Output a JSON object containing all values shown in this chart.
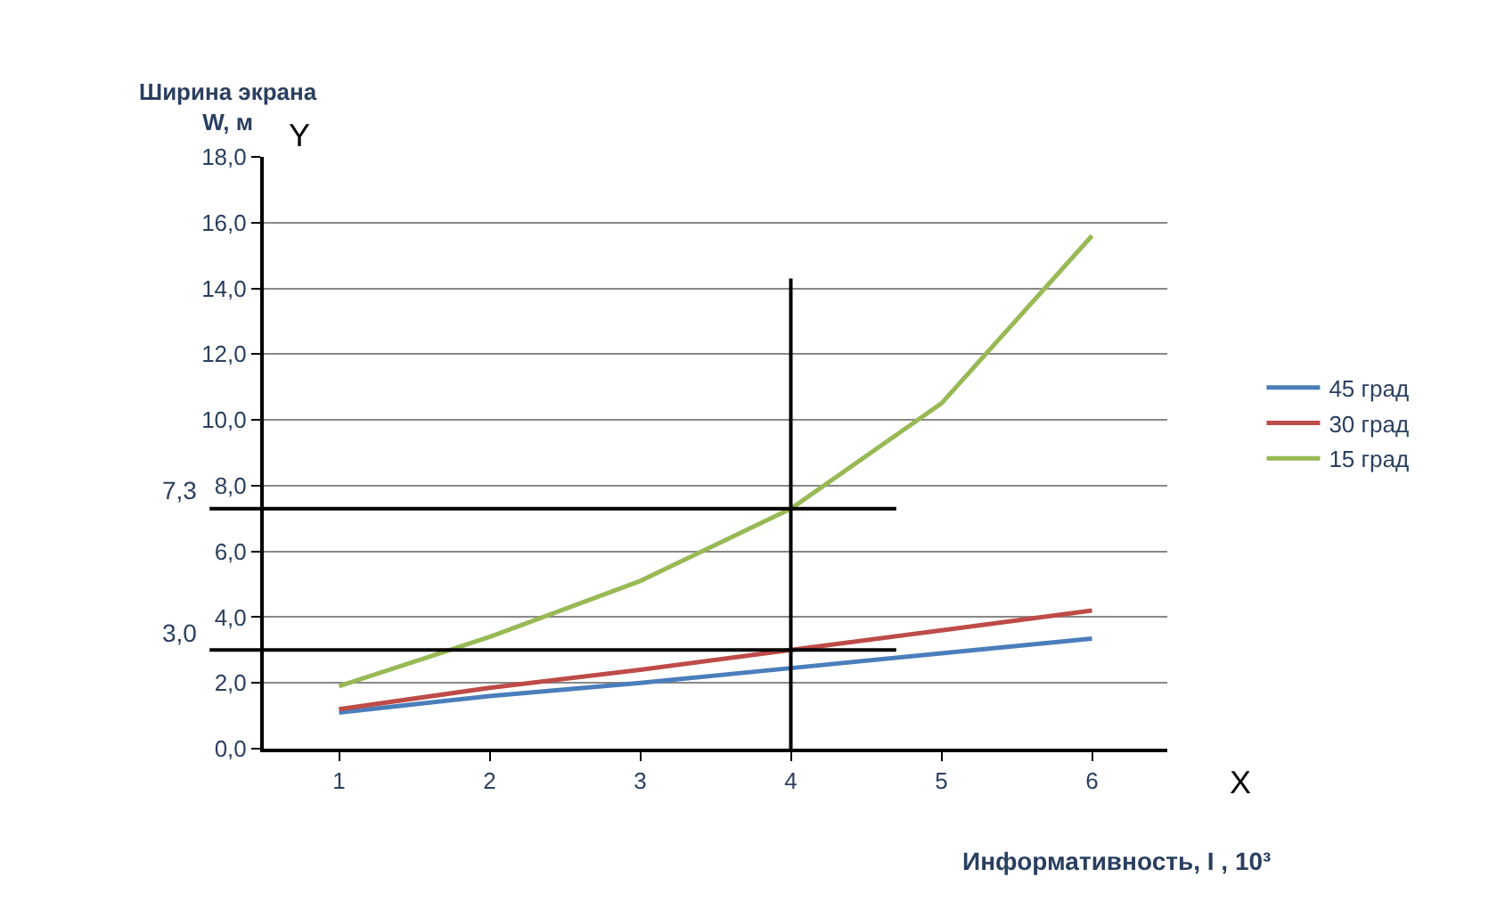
{
  "chart_data": {
    "type": "line",
    "xlabel": "Информативность, I , 10³",
    "ylabel": "Ширина экрана\nW, м",
    "x": [
      1,
      2,
      3,
      4,
      5,
      6
    ],
    "xlim": [
      0.5,
      6.5
    ],
    "xticks": [
      1,
      2,
      3,
      4,
      5,
      6
    ],
    "ylim": [
      0,
      18
    ],
    "yticks": [
      {
        "value": 0,
        "label": "0,0"
      },
      {
        "value": 2,
        "label": "2,0"
      },
      {
        "value": 4,
        "label": "4,0"
      },
      {
        "value": 6,
        "label": "6,0"
      },
      {
        "value": 8,
        "label": "8,0"
      },
      {
        "value": 10,
        "label": "10,0"
      },
      {
        "value": 12,
        "label": "12,0"
      },
      {
        "value": 14,
        "label": "14,0"
      },
      {
        "value": 16,
        "label": "16,0"
      },
      {
        "value": 18,
        "label": "18,0"
      }
    ],
    "series": [
      {
        "name": "45 град",
        "color": "#4a7ebb",
        "values": [
          1.1,
          1.6,
          2.0,
          2.45,
          2.9,
          3.35
        ]
      },
      {
        "name": "30 град",
        "color": "#be4b48",
        "values": [
          1.2,
          1.85,
          2.4,
          3.0,
          3.6,
          4.2
        ]
      },
      {
        "name": "15 град",
        "color": "#98b954",
        "values": [
          1.9,
          3.4,
          5.1,
          7.3,
          10.5,
          15.6
        ]
      }
    ],
    "ref_lines": [
      {
        "axis": "y",
        "value": 7.3,
        "label": "7,3",
        "color": "#000000"
      },
      {
        "axis": "y",
        "value": 3.0,
        "label": "3,0",
        "color": "#000000"
      },
      {
        "axis": "x",
        "value": 4,
        "label": null,
        "color": "#000000"
      }
    ],
    "annotations": [
      "Y",
      "X"
    ],
    "grid": "y",
    "legend": "right",
    "marker": "none",
    "line_style": "solid"
  }
}
